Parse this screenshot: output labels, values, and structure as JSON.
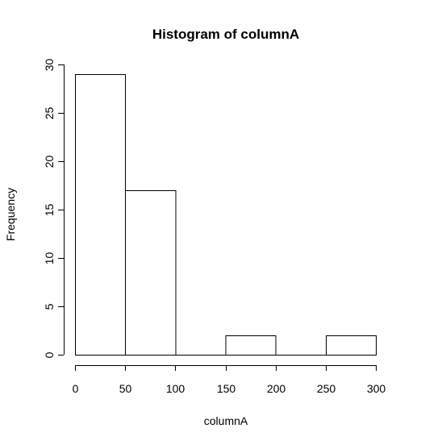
{
  "chart_data": {
    "type": "bar",
    "subtype": "histogram",
    "title": "Histogram of columnA",
    "xlabel": "columnA",
    "ylabel": "Frequency",
    "bins": [
      {
        "start": 0,
        "end": 50,
        "count": 29
      },
      {
        "start": 50,
        "end": 100,
        "count": 17
      },
      {
        "start": 100,
        "end": 150,
        "count": 0
      },
      {
        "start": 150,
        "end": 200,
        "count": 2
      },
      {
        "start": 200,
        "end": 250,
        "count": 0
      },
      {
        "start": 250,
        "end": 300,
        "count": 2
      }
    ],
    "xlim": [
      0,
      300
    ],
    "ylim": [
      0,
      30
    ],
    "xticks": [
      0,
      50,
      100,
      150,
      200,
      250,
      300
    ],
    "yticks": [
      0,
      5,
      10,
      15,
      20,
      25,
      30
    ],
    "grid": false,
    "legend": "none"
  }
}
